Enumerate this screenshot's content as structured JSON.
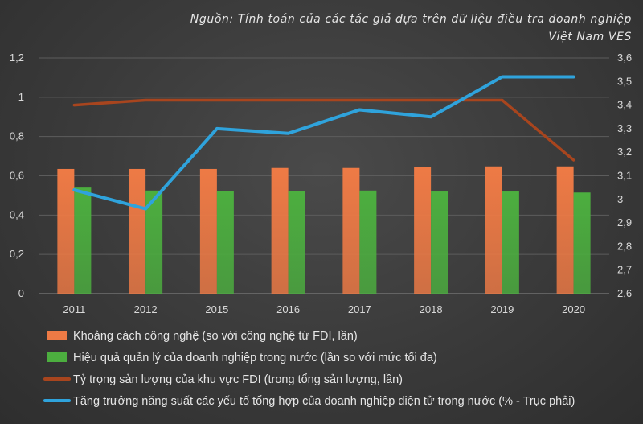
{
  "chart_data": {
    "type": "bar",
    "title": "",
    "source_lines": [
      "Nguồn: Tính toán của các tác giả dựa trên dữ liệu điều tra doanh nghiệp",
      "Việt Nam VES"
    ],
    "categories": [
      "2011",
      "2012",
      "2015",
      "2016",
      "2017",
      "2018",
      "2019",
      "2020"
    ],
    "ylim_left": [
      0,
      1.2
    ],
    "yticks_left": [
      "0",
      "0,2",
      "0,4",
      "0,6",
      "0,8",
      "1",
      "1,2"
    ],
    "ylim_right": [
      2.6,
      3.6
    ],
    "yticks_right": [
      "2,6",
      "2,7",
      "2,8",
      "2,9",
      "3",
      "3,1",
      "3,2",
      "3,3",
      "3,4",
      "3,5",
      "3,6"
    ],
    "grid": true,
    "legend_position": "bottom",
    "series": [
      {
        "name": "Khoảng cách công nghệ (so với công nghệ từ FDI, lần)",
        "kind": "bar",
        "axis": "left",
        "color": "#ee7a45",
        "values": [
          0.635,
          0.635,
          0.635,
          0.64,
          0.64,
          0.645,
          0.648,
          0.648
        ]
      },
      {
        "name": "Hiệu quả quản lý của doanh nghiệp trong nước (lần so với mức tối đa)",
        "kind": "bar",
        "axis": "left",
        "color": "#4cae3f",
        "values": [
          0.54,
          0.525,
          0.523,
          0.522,
          0.525,
          0.52,
          0.52,
          0.515
        ]
      },
      {
        "name": "Tỷ trọng sản lượng của khu vực FDI (trong tổng sản lượng, lần)",
        "kind": "line",
        "axis": "left",
        "color": "#a8451e",
        "values": [
          0.96,
          0.985,
          0.985,
          0.985,
          0.985,
          0.985,
          0.985,
          0.68
        ]
      },
      {
        "name": "Tăng trưởng năng suất các yếu tố tổng hợp của doanh nghiệp điện tử trong nước (% - Trục phải)",
        "kind": "line",
        "axis": "right",
        "color": "#2fa3dc",
        "values": [
          3.04,
          2.96,
          3.3,
          3.28,
          3.38,
          3.35,
          3.52,
          3.52
        ]
      }
    ]
  }
}
